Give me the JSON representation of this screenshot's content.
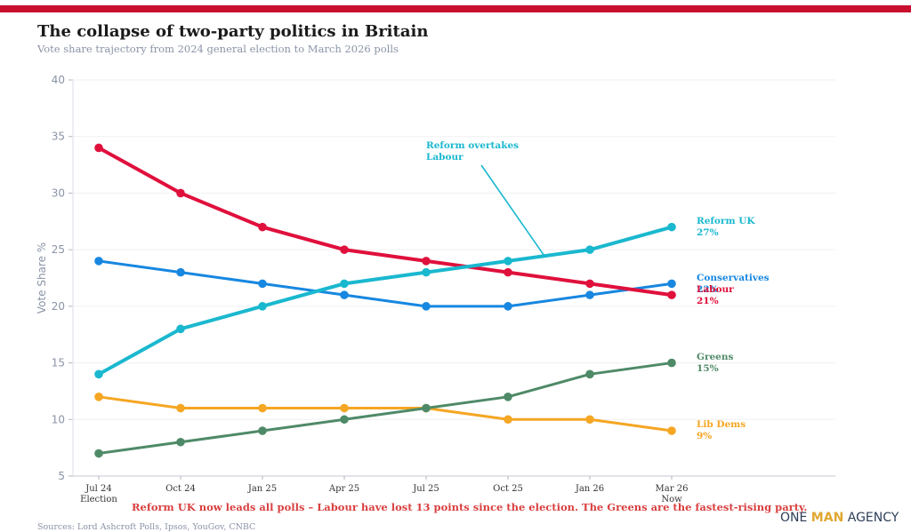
{
  "header": {
    "title": "The collapse of two-party politics in Britain",
    "subtitle": "Vote share trajectory from 2024 general election to March 2026 polls",
    "accent_color": "#c8102e"
  },
  "chart_data": {
    "type": "line",
    "title": "The collapse of two-party politics in Britain",
    "subtitle": "Vote share trajectory from 2024 general election to March 2026 polls",
    "xlabel": "",
    "ylabel": "Vote Share %",
    "ylim": [
      5,
      40
    ],
    "yticks": [
      5,
      10,
      15,
      20,
      25,
      30,
      35,
      40
    ],
    "grid": true,
    "categories": [
      "Jul 24",
      "Oct 24",
      "Jan 25",
      "Apr 25",
      "Jul 25",
      "Oct 25",
      "Jan 26",
      "Mar 26"
    ],
    "category_sublabels": [
      "Election",
      "",
      "",
      "",
      "",
      "",
      "",
      "Now"
    ],
    "series": [
      {
        "name": "Labour",
        "color": "#e0103c",
        "values": [
          34,
          30,
          27,
          25,
          24,
          23,
          22,
          21
        ],
        "end_label": "Labour",
        "end_value_label": "21%",
        "line_weight": "thick"
      },
      {
        "name": "Conservatives",
        "color": "#1787e0",
        "values": [
          24,
          23,
          22,
          21,
          20,
          20,
          21,
          22
        ],
        "end_label": "Conservatives",
        "end_value_label": "22%",
        "line_weight": "normal"
      },
      {
        "name": "Reform UK",
        "color": "#1ab8cf",
        "values": [
          14,
          18,
          20,
          22,
          23,
          24,
          25,
          27
        ],
        "end_label": "Reform UK",
        "end_value_label": "27%",
        "line_weight": "thick"
      },
      {
        "name": "Greens",
        "color": "#4f8a68",
        "values": [
          7,
          8,
          9,
          10,
          11,
          12,
          14,
          15
        ],
        "end_label": "Greens",
        "end_value_label": "15%",
        "line_weight": "normal"
      },
      {
        "name": "Lib Dems",
        "color": "#f5a623",
        "values": [
          12,
          11,
          11,
          11,
          11,
          10,
          10,
          9
        ],
        "end_label": "Lib Dems",
        "end_value_label": "9%",
        "line_weight": "normal"
      }
    ],
    "annotations": [
      {
        "text_lines": [
          "Reform overtakes",
          "Labour"
        ],
        "color": "#1ab8cf",
        "points_to": {
          "x_between": [
            "Oct 25",
            "Jan 26"
          ],
          "y": 24.4
        }
      }
    ]
  },
  "footer": {
    "takeaway": "Reform UK now leads all polls – Labour have lost 13 points since the election. The Greens are the fastest-rising party.",
    "sources": "Sources: Lord Ashcroft Polls, Ipsos, YouGov, CNBC",
    "brand": {
      "part1": "ONE ",
      "part2": "MAN",
      "part3": " AGENCY"
    }
  }
}
